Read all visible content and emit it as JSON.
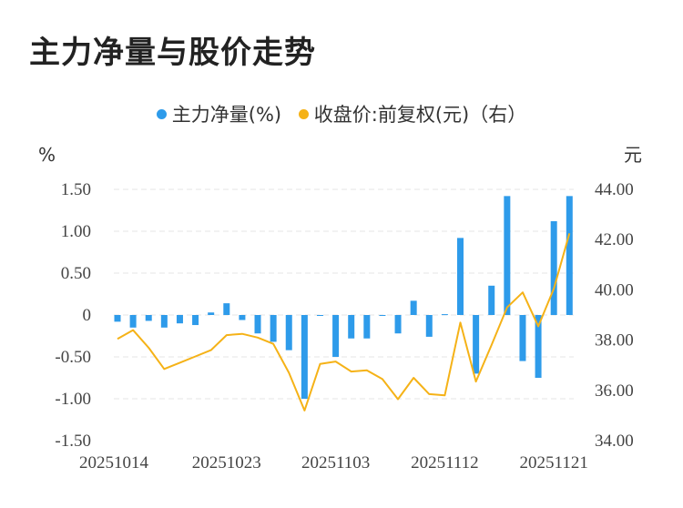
{
  "title": "主力净量与股价走势",
  "colors": {
    "bar": "#2e9bea",
    "line": "#f5b217",
    "grid": "#e6e6e6"
  },
  "chart_data": {
    "type": "bar+line",
    "title": "主力净量与股价走势",
    "legend": [
      "主力净量(%)",
      "收盘价:前复权(元)（右）"
    ],
    "left_unit": "%",
    "right_unit": "元",
    "x_tick_labels": [
      "20251014",
      "20251023",
      "20251103",
      "20251112",
      "20251121"
    ],
    "left_ticks": [
      "1.50",
      "1.00",
      "0.50",
      "0",
      "-0.50",
      "-1.00",
      "-1.50"
    ],
    "right_ticks": [
      "44.00",
      "42.00",
      "40.00",
      "38.00",
      "36.00",
      "34.00"
    ],
    "ylim_left": [
      -1.5,
      1.5
    ],
    "ylim_right": [
      34,
      44
    ],
    "x": [
      "20251014",
      "20251015",
      "20251016",
      "20251017",
      "20251020",
      "20251021",
      "20251022",
      "20251023",
      "20251024",
      "20251027",
      "20251028",
      "20251029",
      "20251030",
      "20251031",
      "20251103",
      "20251104",
      "20251105",
      "20251106",
      "20251107",
      "20251110",
      "20251111",
      "20251112",
      "20251113",
      "20251114",
      "20251117",
      "20251118",
      "20251119",
      "20251120",
      "20251121",
      "20251124"
    ],
    "series": [
      {
        "name": "主力净量(%)",
        "type": "bar",
        "values": [
          -0.08,
          -0.15,
          -0.07,
          -0.15,
          -0.1,
          -0.12,
          0.03,
          0.14,
          -0.06,
          -0.22,
          -0.32,
          -0.42,
          -1.0,
          -0.01,
          -0.5,
          -0.28,
          -0.28,
          -0.01,
          -0.22,
          0.17,
          -0.26,
          0.01,
          0.92,
          -0.7,
          0.35,
          1.42,
          -0.55,
          -0.75,
          1.12,
          1.42
        ]
      },
      {
        "name": "收盘价:前复权(元)（右）",
        "type": "line",
        "axis": "right",
        "values": [
          38.05,
          38.4,
          37.7,
          36.85,
          37.1,
          37.35,
          37.6,
          38.2,
          38.25,
          38.1,
          37.85,
          36.7,
          35.2,
          37.05,
          37.15,
          36.75,
          36.8,
          36.45,
          35.65,
          36.5,
          35.85,
          35.8,
          38.7,
          36.35,
          37.8,
          39.3,
          39.9,
          38.55,
          40.05,
          42.25
        ]
      }
    ]
  }
}
